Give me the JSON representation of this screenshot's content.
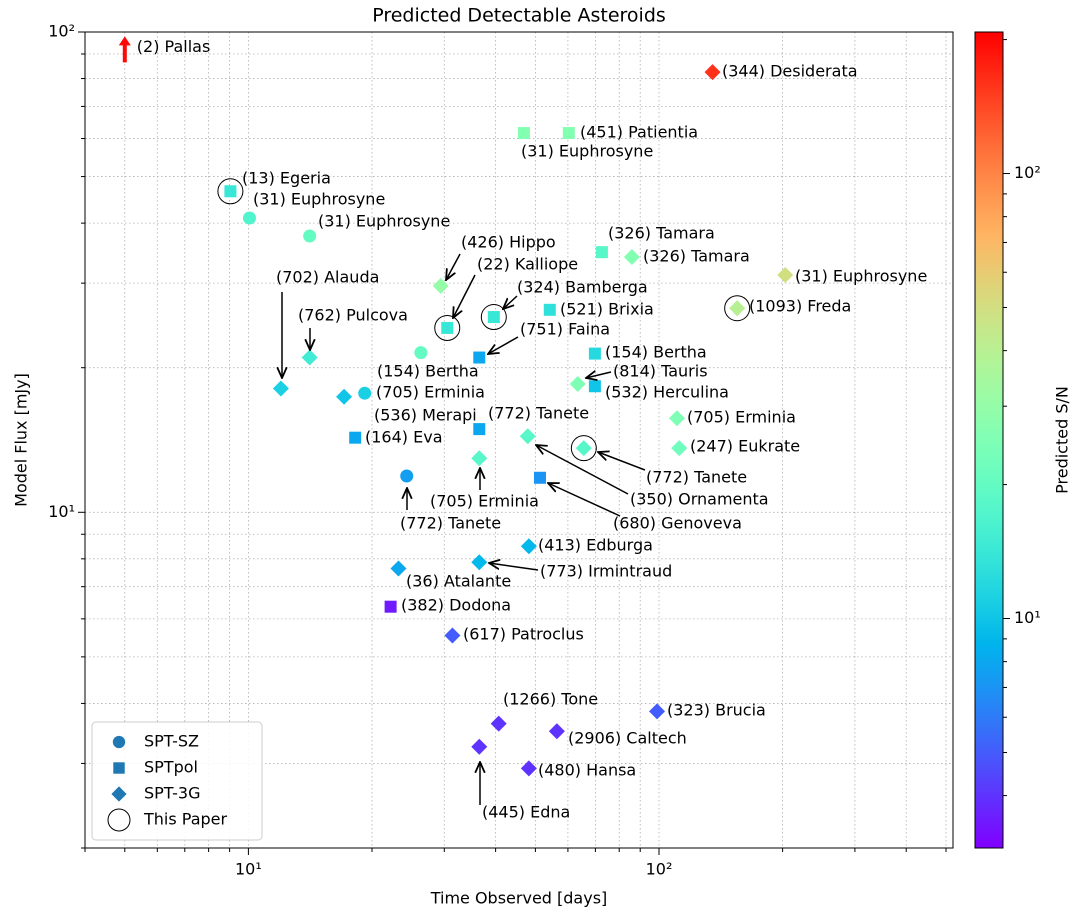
{
  "chart_data": {
    "type": "scatter",
    "title": "Predicted Detectable Asteroids",
    "xlabel": "Time Observed [days]",
    "ylabel": "Model Flux [mJy]",
    "xscale": "log",
    "yscale": "log",
    "xlim": [
      4,
      520
    ],
    "ylim": [
      2,
      100
    ],
    "xticks": [
      {
        "value": 10,
        "label": "10¹"
      },
      {
        "value": 100,
        "label": "10²"
      }
    ],
    "yticks": [
      {
        "value": 10,
        "label": "10¹"
      },
      {
        "value": 100,
        "label": "10²"
      }
    ],
    "xminor": [
      4,
      5,
      6,
      7,
      8,
      9,
      20,
      30,
      40,
      50,
      60,
      70,
      80,
      90,
      200,
      300,
      400,
      500
    ],
    "yminor": [
      2,
      3,
      4,
      5,
      6,
      7,
      8,
      9,
      20,
      30,
      40,
      50,
      60,
      70,
      80,
      90
    ],
    "grid": true,
    "legend": "lower left",
    "colorbar": {
      "label": "Predicted S/N",
      "scale": "log",
      "colormap": "rainbow",
      "lim": [
        3.05,
        208
      ],
      "ticks": [
        {
          "value": 10,
          "label": "10¹"
        },
        {
          "value": 100,
          "label": "10²"
        }
      ],
      "minor": [
        4,
        5,
        6,
        7,
        8,
        9,
        20,
        30,
        40,
        50,
        60,
        70,
        80,
        90,
        200
      ]
    },
    "this_paper_name": "This Paper",
    "series": [
      {
        "name": "SPT-SZ",
        "marker": "circle",
        "color": "#1f77b4",
        "x": [
          10.06,
          14.1,
          26.3,
          19.2,
          24.3
        ],
        "values": [
          41,
          37.6,
          21.5,
          17.7,
          11.9
        ],
        "sn": [
          17,
          20,
          20,
          11,
          7.5
        ],
        "labels": [
          "(31) Euphrosyne",
          "(31) Euphrosyne",
          "(154) Bertha",
          "(705) Erminia",
          "(772) Tanete"
        ],
        "this_paper": [
          false,
          false,
          false,
          false,
          false
        ]
      },
      {
        "name": "SPTpol",
        "marker": "square",
        "color": "#1f77b4",
        "x": [
          46.9,
          60.3,
          9.04,
          30.5,
          39.6,
          72.6,
          54.2,
          36.5,
          69.8,
          69.8,
          18.2,
          36.5,
          51.3,
          22.2
        ],
        "values": [
          61.6,
          61.6,
          46.6,
          24.2,
          25.5,
          34.8,
          26.4,
          21,
          21.4,
          18.3,
          14.3,
          14.9,
          11.8,
          6.36
        ],
        "sn": [
          26,
          26,
          14,
          14,
          14,
          18,
          13,
          8,
          12,
          10,
          8,
          8,
          7,
          3.5
        ],
        "labels": [
          "(31) Euphrosyne",
          "(451) Patientia",
          "(13) Egeria",
          "(22) Kalliope",
          "(324) Bamberga",
          "(326) Tamara",
          "(521) Brixia",
          "(751) Faina",
          "(154) Bertha",
          "(532) Herculina",
          "(164) Eva",
          "(772) Tanete",
          "(680) Genoveva",
          "(382) Dodona"
        ],
        "this_paper": [
          false,
          false,
          true,
          true,
          true,
          false,
          false,
          false,
          false,
          false,
          false,
          false,
          false,
          false
        ]
      },
      {
        "name": "SPT-3G",
        "marker": "diamond",
        "color": "#1f77b4",
        "x": [
          135,
          29.4,
          85.9,
          203,
          155,
          12,
          14.1,
          17.1,
          63.4,
          47.9,
          110.6,
          112,
          65.6,
          36.5,
          48.2,
          36.5,
          23.2,
          31.4,
          40.7,
          98.9,
          56.4,
          36.5,
          48.2
        ],
        "values": [
          82.5,
          29.6,
          34,
          31.2,
          26.6,
          18.1,
          21,
          17.4,
          18.5,
          14.4,
          15.7,
          13.6,
          13.6,
          12.96,
          8.5,
          7.87,
          7.64,
          5.54,
          3.63,
          3.85,
          3.5,
          3.25,
          2.93
        ],
        "sn": [
          160,
          30,
          26,
          50,
          40,
          11,
          15,
          10,
          25,
          18,
          25,
          22,
          18,
          18,
          9,
          9,
          8,
          5,
          4,
          5,
          4,
          4,
          4
        ],
        "labels": [
          "(344) Desiderata",
          "(426) Hippo",
          "(326) Tamara",
          "(31) Euphrosyne",
          "(1093) Freda",
          "(702) Alauda",
          "(762) Pulcova",
          "(536) Merapi",
          "(814) Tauris",
          "(350) Ornamenta",
          "(705) Erminia",
          "(247) Eukrate",
          "(772) Tanete",
          "(705) Erminia",
          "(413) Edburga",
          "(773) Irmintraud",
          "(36) Atalante",
          "(617) Patroclus",
          "(1266) Tone",
          "(323) Brucia",
          "(2906) Caltech",
          "(445) Edna",
          "(480) Hansa"
        ],
        "this_paper": [
          false,
          false,
          false,
          false,
          true,
          false,
          false,
          false,
          false,
          false,
          false,
          false,
          true,
          false,
          false,
          false,
          false,
          false,
          false,
          false,
          false,
          false,
          false
        ]
      }
    ],
    "limits": {
      "marker": "arrow-up",
      "x": [
        5
      ],
      "values": [
        92
      ],
      "sn": [
        200
      ],
      "labels": [
        "(2) Pallas"
      ]
    }
  }
}
